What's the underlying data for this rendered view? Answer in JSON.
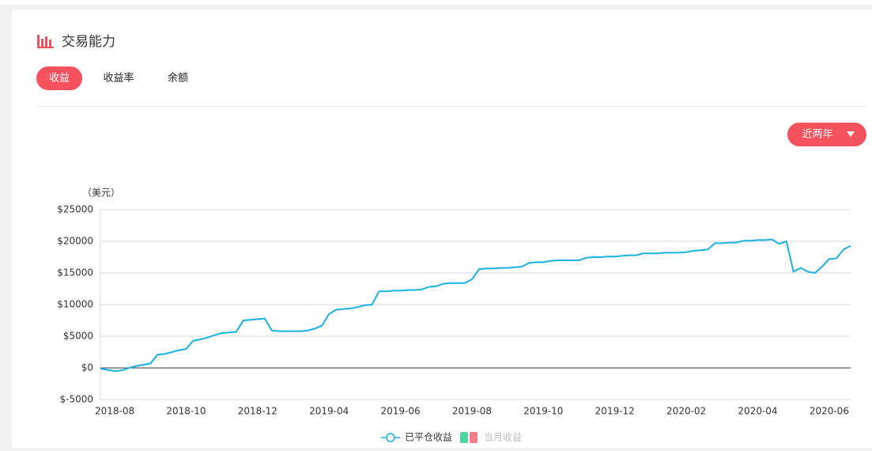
{
  "card": {
    "title": "交易能力",
    "tabs": [
      "收益",
      "收益率",
      "余额"
    ],
    "active_tab": 0,
    "range_select": "近两年"
  },
  "chart_data": {
    "type": "line",
    "y_label": "（美元）",
    "categories": [
      null,
      null,
      "2018-08",
      null,
      null,
      null,
      null,
      null,
      null,
      null,
      null,
      null,
      "2018-10",
      null,
      null,
      null,
      null,
      null,
      null,
      null,
      null,
      null,
      "2018-12",
      null,
      null,
      null,
      null,
      null,
      null,
      null,
      null,
      null,
      "2019-04",
      null,
      null,
      null,
      null,
      null,
      null,
      null,
      null,
      null,
      "2019-06",
      null,
      null,
      null,
      null,
      null,
      null,
      null,
      null,
      null,
      "2019-08",
      null,
      null,
      null,
      null,
      null,
      null,
      null,
      null,
      null,
      "2019-10",
      null,
      null,
      null,
      null,
      null,
      null,
      null,
      null,
      null,
      "2019-12",
      null,
      null,
      null,
      null,
      null,
      null,
      null,
      null,
      null,
      "2020-02",
      null,
      null,
      null,
      null,
      null,
      null,
      null,
      null,
      null,
      "2020-04",
      null,
      null,
      null,
      null,
      null,
      null,
      null,
      null,
      null,
      "2020-06",
      null,
      null,
      null
    ],
    "series": [
      {
        "name": "已平仓收益",
        "color": "#1ab1e6",
        "values": [
          -100,
          -300,
          -500,
          -400,
          0,
          300,
          500,
          700,
          2100,
          2200,
          2500,
          2800,
          3000,
          4300,
          4500,
          4800,
          5200,
          5500,
          5600,
          5700,
          7500,
          7600,
          7700,
          7800,
          5900,
          5800,
          5800,
          5800,
          5800,
          5900,
          6200,
          6700,
          8500,
          9200,
          9300,
          9400,
          9600,
          9900,
          10000,
          12100,
          12100,
          12200,
          12200,
          12300,
          12300,
          12400,
          12800,
          12900,
          13300,
          13400,
          13400,
          13400,
          14000,
          15600,
          15700,
          15700,
          15800,
          15800,
          15900,
          16000,
          16600,
          16700,
          16700,
          16900,
          17000,
          17000,
          17000,
          17000,
          17400,
          17500,
          17500,
          17600,
          17600,
          17700,
          17800,
          17800,
          18100,
          18100,
          18100,
          18200,
          18200,
          18200,
          18300,
          18500,
          18600,
          18700,
          19700,
          19700,
          19800,
          19800,
          20100,
          20100,
          20200,
          20200,
          20300,
          19600,
          20000,
          15200,
          15800,
          15200,
          15000,
          16000,
          17200,
          17300,
          18700,
          19300
        ]
      },
      {
        "name": "当月收益",
        "colors": [
          "#4fd6a0",
          "#f27b88"
        ],
        "hidden": true
      }
    ],
    "ylim": [
      -5000,
      25000
    ],
    "yticks": [
      {
        "value": -5000,
        "label": "$-5000"
      },
      {
        "value": 0,
        "label": "$0"
      },
      {
        "value": 5000,
        "label": "$5000"
      },
      {
        "value": 10000,
        "label": "$10000"
      },
      {
        "value": 15000,
        "label": "$15000"
      },
      {
        "value": 20000,
        "label": "$20000"
      },
      {
        "value": 25000,
        "label": "$25000"
      }
    ],
    "grid": true
  }
}
